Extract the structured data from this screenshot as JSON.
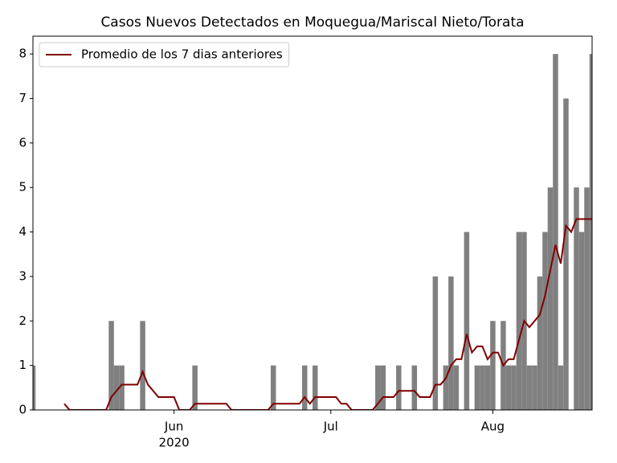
{
  "chart_data": {
    "type": "bar",
    "title": "Casos Nuevos Detectados en Moquegua/Mariscal Nieto/Torata",
    "values": [
      1,
      0,
      0,
      0,
      0,
      0,
      0,
      0,
      0,
      0,
      0,
      0,
      0,
      0,
      0,
      2,
      1,
      1,
      0,
      0,
      0,
      2,
      0,
      0,
      0,
      0,
      0,
      0,
      0,
      0,
      0,
      1,
      0,
      0,
      0,
      0,
      0,
      0,
      0,
      0,
      0,
      0,
      0,
      0,
      0,
      0,
      1,
      0,
      0,
      0,
      0,
      0,
      1,
      0,
      1,
      0,
      0,
      0,
      0,
      0,
      0,
      0,
      0,
      0,
      0,
      0,
      1,
      1,
      0,
      0,
      1,
      0,
      0,
      1,
      0,
      0,
      0,
      3,
      0,
      1,
      3,
      1,
      0,
      4,
      0,
      1,
      1,
      1,
      2,
      0,
      2,
      1,
      1,
      4,
      4,
      1,
      1,
      3,
      4,
      5,
      8,
      1,
      7,
      0,
      5,
      4,
      5,
      8
    ],
    "color": "#808080",
    "series": [
      {
        "name": "Promedio de los 7 dias anteriores",
        "color": "#800000",
        "type": "line",
        "values": [
          null,
          null,
          null,
          null,
          null,
          null,
          0.14,
          0,
          0,
          0,
          0,
          0,
          0,
          0,
          0,
          0.29,
          0.43,
          0.57,
          0.57,
          0.57,
          0.57,
          0.86,
          0.57,
          0.43,
          0.29,
          0.29,
          0.29,
          0.29,
          0,
          0,
          0,
          0.14,
          0.14,
          0.14,
          0.14,
          0.14,
          0.14,
          0.14,
          0,
          0,
          0,
          0,
          0,
          0,
          0,
          0,
          0.14,
          0.14,
          0.14,
          0.14,
          0.14,
          0.14,
          0.29,
          0.14,
          0.29,
          0.29,
          0.29,
          0.29,
          0.29,
          0.14,
          0.14,
          0,
          0,
          0,
          0,
          0,
          0.14,
          0.29,
          0.29,
          0.29,
          0.43,
          0.43,
          0.43,
          0.43,
          0.29,
          0.29,
          0.29,
          0.57,
          0.57,
          0.71,
          1.0,
          1.14,
          1.14,
          1.71,
          1.29,
          1.43,
          1.43,
          1.14,
          1.29,
          1.29,
          1.0,
          1.14,
          1.14,
          1.57,
          2.0,
          1.86,
          2.0,
          2.14,
          2.57,
          3.14,
          3.71,
          3.29,
          4.14,
          4.0,
          4.29,
          4.29,
          4.29,
          4.29
        ]
      }
    ],
    "xlim": [
      0,
      107
    ],
    "xticks": [
      {
        "value": 27,
        "label": "Jun"
      },
      {
        "value": 57,
        "label": "Jul"
      },
      {
        "value": 88,
        "label": "Aug"
      }
    ],
    "xtick_sublabel": "2020",
    "ylim": [
      0,
      8.4
    ],
    "yticks": [
      0,
      1,
      2,
      3,
      4,
      5,
      6,
      7,
      8
    ],
    "legend": "upper left"
  }
}
